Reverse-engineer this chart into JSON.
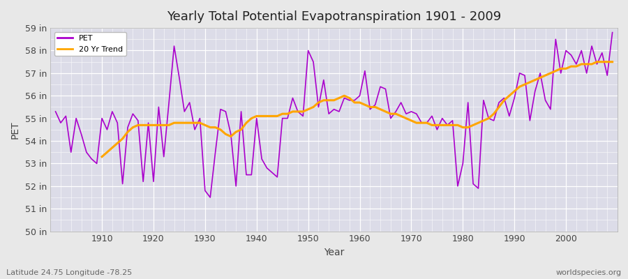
{
  "title": "Yearly Total Potential Evapotranspiration 1901 - 2009",
  "xlabel": "Year",
  "ylabel": "PET",
  "subtitle_left": "Latitude 24.75 Longitude -78.25",
  "subtitle_right": "worldspecies.org",
  "ylim": [
    50,
    59
  ],
  "ytick_labels": [
    "50 in",
    "51 in",
    "52 in",
    "53 in",
    "54 in",
    "55 in",
    "56 in",
    "57 in",
    "58 in",
    "59 in"
  ],
  "ytick_values": [
    50,
    51,
    52,
    53,
    54,
    55,
    56,
    57,
    58,
    59
  ],
  "xtick_values": [
    1910,
    1920,
    1930,
    1940,
    1950,
    1960,
    1970,
    1980,
    1990,
    2000
  ],
  "pet_color": "#AA00CC",
  "trend_color": "#FFA500",
  "bg_color": "#E8E8E8",
  "plot_bg_color": "#DCDCE8",
  "grid_color": "#FFFFFF",
  "pet_data": {
    "years": [
      1901,
      1902,
      1903,
      1904,
      1905,
      1906,
      1907,
      1908,
      1909,
      1910,
      1911,
      1912,
      1913,
      1914,
      1915,
      1916,
      1917,
      1918,
      1919,
      1920,
      1921,
      1922,
      1923,
      1924,
      1925,
      1926,
      1927,
      1928,
      1929,
      1930,
      1931,
      1932,
      1933,
      1934,
      1935,
      1936,
      1937,
      1938,
      1939,
      1940,
      1941,
      1942,
      1943,
      1944,
      1945,
      1946,
      1947,
      1948,
      1949,
      1950,
      1951,
      1952,
      1953,
      1954,
      1955,
      1956,
      1957,
      1958,
      1959,
      1960,
      1961,
      1962,
      1963,
      1964,
      1965,
      1966,
      1967,
      1968,
      1969,
      1970,
      1971,
      1972,
      1973,
      1974,
      1975,
      1976,
      1977,
      1978,
      1979,
      1980,
      1981,
      1982,
      1983,
      1984,
      1985,
      1986,
      1987,
      1988,
      1989,
      1990,
      1991,
      1992,
      1993,
      1994,
      1995,
      1996,
      1997,
      1998,
      1999,
      2000,
      2001,
      2002,
      2003,
      2004,
      2005,
      2006,
      2007,
      2008,
      2009
    ],
    "values": [
      55.3,
      54.8,
      55.1,
      53.5,
      55.0,
      54.3,
      53.5,
      53.2,
      53.0,
      55.0,
      54.5,
      55.3,
      54.8,
      52.1,
      54.6,
      55.2,
      54.9,
      52.2,
      54.8,
      52.2,
      55.5,
      53.3,
      55.7,
      58.2,
      56.8,
      55.3,
      55.7,
      54.5,
      55.0,
      51.8,
      51.5,
      53.5,
      55.4,
      55.3,
      54.3,
      52.0,
      55.3,
      52.5,
      52.5,
      55.0,
      53.2,
      52.8,
      52.6,
      52.4,
      55.0,
      55.0,
      55.9,
      55.3,
      55.1,
      58.0,
      57.5,
      55.5,
      56.7,
      55.2,
      55.4,
      55.3,
      55.9,
      55.8,
      55.8,
      56.0,
      57.1,
      55.4,
      55.6,
      56.4,
      56.3,
      55.0,
      55.3,
      55.7,
      55.2,
      55.3,
      55.2,
      54.8,
      54.8,
      55.1,
      54.5,
      55.0,
      54.7,
      54.9,
      52.0,
      53.0,
      55.7,
      52.1,
      51.9,
      55.8,
      55.0,
      54.9,
      55.7,
      55.9,
      55.1,
      55.9,
      57.0,
      56.9,
      54.9,
      56.2,
      57.0,
      55.8,
      55.4,
      58.5,
      57.0,
      58.0,
      57.8,
      57.4,
      58.0,
      57.0,
      58.2,
      57.4,
      57.9,
      56.9,
      58.8
    ]
  },
  "trend_data": {
    "years": [
      1910,
      1911,
      1912,
      1913,
      1914,
      1915,
      1916,
      1917,
      1918,
      1919,
      1920,
      1921,
      1922,
      1923,
      1924,
      1925,
      1926,
      1927,
      1928,
      1929,
      1930,
      1931,
      1932,
      1933,
      1934,
      1935,
      1936,
      1937,
      1938,
      1939,
      1940,
      1941,
      1942,
      1943,
      1944,
      1945,
      1946,
      1947,
      1948,
      1949,
      1950,
      1951,
      1952,
      1953,
      1954,
      1955,
      1956,
      1957,
      1958,
      1959,
      1960,
      1961,
      1962,
      1963,
      1964,
      1965,
      1966,
      1967,
      1968,
      1969,
      1970,
      1971,
      1972,
      1973,
      1974,
      1975,
      1976,
      1977,
      1978,
      1979,
      1980,
      1981,
      1982,
      1983,
      1984,
      1985,
      1986,
      1987,
      1988,
      1989,
      1990,
      1991,
      1992,
      1993,
      1994,
      1995,
      1996,
      1997,
      1998,
      1999,
      2000,
      2001,
      2002,
      2003,
      2004,
      2005,
      2006,
      2007,
      2008,
      2009
    ],
    "values": [
      53.3,
      53.5,
      53.7,
      53.9,
      54.1,
      54.4,
      54.6,
      54.7,
      54.7,
      54.7,
      54.7,
      54.7,
      54.7,
      54.7,
      54.8,
      54.8,
      54.8,
      54.8,
      54.8,
      54.8,
      54.7,
      54.6,
      54.6,
      54.5,
      54.3,
      54.2,
      54.4,
      54.5,
      54.8,
      55.0,
      55.1,
      55.1,
      55.1,
      55.1,
      55.1,
      55.2,
      55.2,
      55.3,
      55.3,
      55.3,
      55.4,
      55.5,
      55.7,
      55.8,
      55.8,
      55.8,
      55.9,
      56.0,
      55.9,
      55.7,
      55.7,
      55.6,
      55.5,
      55.5,
      55.4,
      55.3,
      55.2,
      55.2,
      55.1,
      55.0,
      54.9,
      54.8,
      54.8,
      54.8,
      54.7,
      54.7,
      54.7,
      54.7,
      54.7,
      54.7,
      54.6,
      54.6,
      54.7,
      54.8,
      54.9,
      55.0,
      55.2,
      55.5,
      55.8,
      56.0,
      56.2,
      56.4,
      56.5,
      56.6,
      56.7,
      56.8,
      56.9,
      57.0,
      57.1,
      57.2,
      57.2,
      57.3,
      57.3,
      57.4,
      57.4,
      57.4,
      57.5,
      57.5,
      57.5,
      57.5
    ]
  }
}
